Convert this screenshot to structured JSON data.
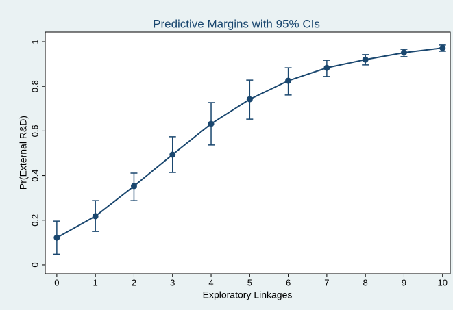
{
  "chart_data": {
    "type": "line",
    "title": "Predictive Margins with 95% CIs",
    "x_label": "Exploratory Linkages",
    "y_label": "Pr(External R&D)",
    "x": [
      0,
      1,
      2,
      3,
      4,
      5,
      6,
      7,
      8,
      9,
      10
    ],
    "series": [
      {
        "color": "#1a476f",
        "values": [
          0.122,
          0.218,
          0.353,
          0.494,
          0.632,
          0.742,
          0.825,
          0.883,
          0.92,
          0.951,
          0.972
        ],
        "lower": [
          0.048,
          0.15,
          0.288,
          0.414,
          0.537,
          0.653,
          0.761,
          0.844,
          0.896,
          0.933,
          0.957
        ],
        "upper": [
          0.196,
          0.288,
          0.411,
          0.574,
          0.727,
          0.828,
          0.883,
          0.917,
          0.942,
          0.966,
          0.985
        ]
      }
    ],
    "xlim": [
      -0.3,
      10.2
    ],
    "xticks": [
      0,
      1,
      2,
      3,
      4,
      5,
      6,
      7,
      8,
      9,
      10
    ],
    "ylim": [
      -0.04,
      1.043
    ],
    "yticks": [
      0,
      0.2,
      0.4,
      0.6,
      0.8,
      1
    ],
    "grid": false
  }
}
